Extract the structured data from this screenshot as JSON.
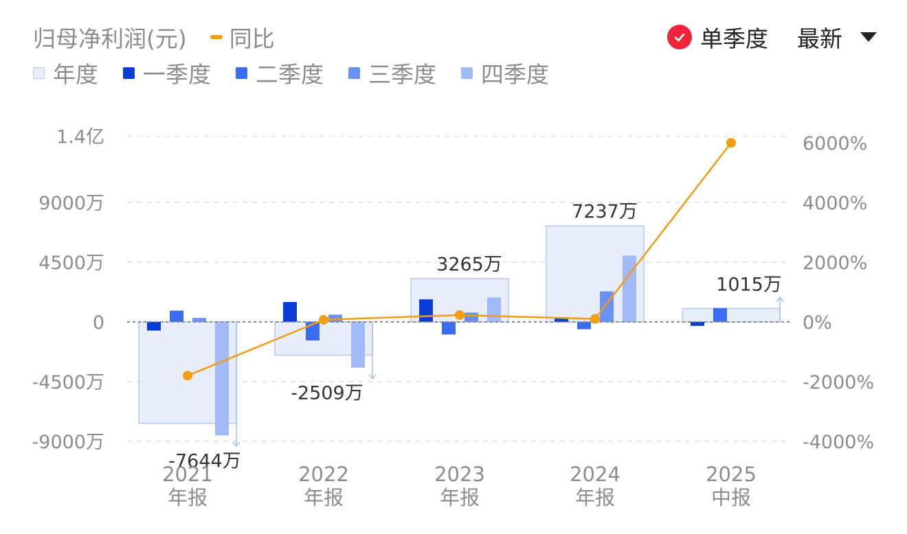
{
  "header": {
    "title": "归母净利润(元)",
    "yoy_label": "同比",
    "single_quarter_label": "单季度",
    "period_select": "最新"
  },
  "legend": [
    {
      "key": "annual",
      "label": "年度"
    },
    {
      "key": "q1",
      "label": "一季度"
    },
    {
      "key": "q2",
      "label": "二季度"
    },
    {
      "key": "q3",
      "label": "三季度"
    },
    {
      "key": "q4",
      "label": "四季度"
    }
  ],
  "colors": {
    "annual_fill": "#e7edfb",
    "annual_border": "#b7c6f0",
    "q1": "#0a3cd6",
    "q2": "#3b6df0",
    "q3": "#6b90f5",
    "q4": "#a3baf8",
    "yoy": "#f39c12",
    "check": "#f0233a",
    "axis_text": "#8c8c8c",
    "value_text": "#333333",
    "grid": "#e6e6e6",
    "zero_line": "#888888"
  },
  "chart_data": {
    "type": "bar",
    "categories": [
      {
        "year": "2021",
        "period": "年报"
      },
      {
        "year": "2022",
        "period": "年报"
      },
      {
        "year": "2023",
        "period": "年报"
      },
      {
        "year": "2024",
        "period": "年报"
      },
      {
        "year": "2025",
        "period": "中报"
      }
    ],
    "annual_values": [
      -7644,
      -2509,
      3265,
      7237,
      1015
    ],
    "annual_labels": [
      "-7644万",
      "-2509万",
      "3265万",
      "7237万",
      "1015万"
    ],
    "series": [
      {
        "name": "一季度",
        "key": "q1",
        "values": [
          -650,
          1500,
          1700,
          350,
          -300
        ]
      },
      {
        "name": "二季度",
        "key": "q2",
        "values": [
          850,
          -1400,
          -950,
          -550,
          1050
        ]
      },
      {
        "name": "三季度",
        "key": "q3",
        "values": [
          300,
          550,
          700,
          2300,
          null
        ]
      },
      {
        "name": "四季度",
        "key": "q4",
        "values": [
          -8550,
          -3450,
          1850,
          5000,
          null
        ]
      }
    ],
    "yoy": {
      "name": "同比",
      "values": [
        -1800,
        70,
        230,
        100,
        6000
      ]
    },
    "y_left": {
      "ticks": [
        -9000,
        -4500,
        0,
        4500,
        9000,
        14000
      ],
      "tick_labels": [
        "-9000万",
        "-4500万",
        "0",
        "4500万",
        "9000万",
        "1.4亿"
      ]
    },
    "y_right": {
      "ticks": [
        -4000,
        -2000,
        0,
        2000,
        4000,
        6000
      ],
      "tick_labels": [
        "-4000%",
        "-2000%",
        "0%",
        "2000%",
        "4000%",
        "6000%"
      ]
    },
    "grid": true
  }
}
